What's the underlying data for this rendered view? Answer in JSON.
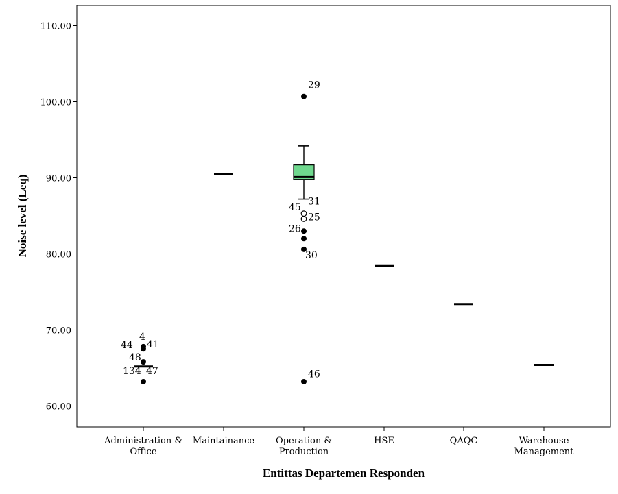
{
  "chart_data": {
    "type": "boxplot",
    "xlabel": "Entittas Departemen Responden",
    "ylabel": "Noise level (Leq)",
    "ylim": [
      55,
      112
    ],
    "yticks": [
      60,
      70,
      80,
      90,
      100,
      110
    ],
    "ytick_labels": [
      "60.00",
      "70.00",
      "80.00",
      "90.00",
      "100.00",
      "110.00"
    ],
    "grid": false,
    "colors": {
      "box_fill": "#6fd88e",
      "axis": "#000000",
      "marks": "#000000"
    },
    "categories": [
      {
        "label": [
          "Administration &",
          "Office"
        ],
        "median": 65.2,
        "whisker_low": null,
        "whisker_high": null,
        "q1": null,
        "q3": null
      },
      {
        "label": [
          "Maintainance"
        ],
        "median": 90.5,
        "whisker_low": null,
        "whisker_high": null,
        "q1": null,
        "q3": null
      },
      {
        "label": [
          "Operation &",
          "Production"
        ],
        "median": 90.1,
        "q1": 89.8,
        "q3": 91.7,
        "whisker_low": 87.2,
        "whisker_high": 94.2
      },
      {
        "label": [
          "HSE"
        ],
        "median": 78.4,
        "whisker_low": null,
        "whisker_high": null,
        "q1": null,
        "q3": null
      },
      {
        "label": [
          "QAQC"
        ],
        "median": 73.4,
        "whisker_low": null,
        "whisker_high": null,
        "q1": null,
        "q3": null
      },
      {
        "label": [
          "Warehouse",
          "Management"
        ],
        "median": 65.4,
        "whisker_low": null,
        "whisker_high": null,
        "q1": null,
        "q3": null
      }
    ],
    "points": [
      {
        "cat": 0,
        "y": 67.8,
        "kind": "extreme"
      },
      {
        "cat": 0,
        "y": 67.5,
        "kind": "extreme"
      },
      {
        "cat": 0,
        "y": 65.8,
        "kind": "extreme"
      },
      {
        "cat": 0,
        "y": 63.2,
        "kind": "extreme"
      },
      {
        "cat": 2,
        "y": 100.7,
        "kind": "extreme"
      },
      {
        "cat": 2,
        "y": 85.3,
        "kind": "outlier"
      },
      {
        "cat": 2,
        "y": 84.6,
        "kind": "outlier"
      },
      {
        "cat": 2,
        "y": 83.0,
        "kind": "extreme"
      },
      {
        "cat": 2,
        "y": 82.0,
        "kind": "extreme"
      },
      {
        "cat": 2,
        "y": 80.6,
        "kind": "extreme"
      },
      {
        "cat": 2,
        "y": 63.2,
        "kind": "extreme"
      }
    ],
    "annotations": [
      {
        "text": "4",
        "cat": 0,
        "y": 68.7,
        "dx": -6
      },
      {
        "text": "44",
        "cat": 0,
        "y": 67.6,
        "dx": -33
      },
      {
        "text": "41",
        "cat": 0,
        "y": 67.7,
        "dx": 5
      },
      {
        "text": "48",
        "cat": 0,
        "y": 66.0,
        "dx": -21
      },
      {
        "text": "134",
        "cat": 0,
        "y": 64.2,
        "dx": -30
      },
      {
        "text": "47",
        "cat": 0,
        "y": 64.2,
        "dx": 4
      },
      {
        "text": "29",
        "cat": 2,
        "y": 101.8,
        "dx": 6
      },
      {
        "text": "31",
        "cat": 2,
        "y": 86.5,
        "dx": 6
      },
      {
        "text": "45",
        "cat": 2,
        "y": 85.7,
        "dx": -22
      },
      {
        "text": "25",
        "cat": 2,
        "y": 84.4,
        "dx": 6
      },
      {
        "text": "26",
        "cat": 2,
        "y": 82.9,
        "dx": -22
      },
      {
        "text": "30",
        "cat": 2,
        "y": 79.4,
        "dx": 2
      },
      {
        "text": "46",
        "cat": 2,
        "y": 63.8,
        "dx": 6
      }
    ]
  }
}
